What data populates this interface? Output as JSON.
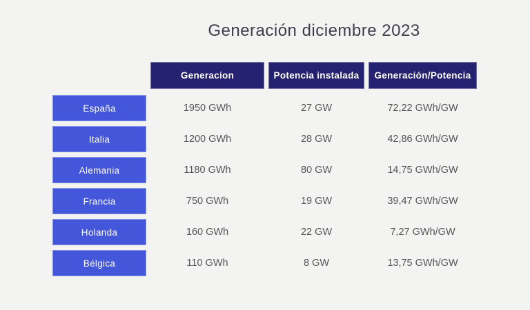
{
  "title": "Generación diciembre 2023",
  "table": {
    "columns": [
      "Generacion",
      "Potencia instalada",
      "Generación/Potencia"
    ],
    "rows": [
      {
        "country": "España",
        "generacion": "1950 GWh",
        "potencia": "27 GW",
        "ratio": "72,22 GWh/GW"
      },
      {
        "country": "Italia",
        "generacion": "1200 GWh",
        "potencia": "28 GW",
        "ratio": "42,86 GWh/GW"
      },
      {
        "country": "Alemania",
        "generacion": "1180 GWh",
        "potencia": "80 GW",
        "ratio": "14,75 GWh/GW"
      },
      {
        "country": "Francia",
        "generacion": "750 GWh",
        "potencia": "19 GW",
        "ratio": "39,47 GWh/GW"
      },
      {
        "country": "Holanda",
        "generacion": "160 GWh",
        "potencia": "22 GW",
        "ratio": "7,27 GWh/GW"
      },
      {
        "country": "Bélgica",
        "generacion": "110 GWh",
        "potencia": "8 GW",
        "ratio": "13,75 GWh/GW"
      }
    ]
  },
  "colors": {
    "background": "#f3f3f1",
    "header_bg": "#252271",
    "label_bg": "#4456d9",
    "header_text": "#ffffff",
    "label_text": "#ffffff",
    "title_text": "#3e3e4c",
    "value_text": "#54555a"
  },
  "chart_data": {
    "type": "table",
    "title": "Generación diciembre 2023",
    "columns": [
      "",
      "Generacion",
      "Potencia instalada",
      "Generación/Potencia"
    ],
    "rows": [
      [
        "España",
        "1950 GWh",
        "27 GW",
        "72,22 GWh/GW"
      ],
      [
        "Italia",
        "1200 GWh",
        "28 GW",
        "42,86 GWh/GW"
      ],
      [
        "Alemania",
        "1180 GWh",
        "80 GW",
        "14,75 GWh/GW"
      ],
      [
        "Francia",
        "750 GWh",
        "19 GW",
        "39,47 GWh/GW"
      ],
      [
        "Holanda",
        "160 GWh",
        "22 GW",
        "7,27 GWh/GW"
      ],
      [
        "Bélgica",
        "110 GWh",
        "8 GW",
        "13,75 GWh/GW"
      ]
    ],
    "categories": [
      "España",
      "Italia",
      "Alemania",
      "Francia",
      "Holanda",
      "Bélgica"
    ],
    "series": [
      {
        "name": "Generacion (GWh)",
        "values": [
          1950,
          1200,
          1180,
          750,
          160,
          110
        ]
      },
      {
        "name": "Potencia instalada (GW)",
        "values": [
          27,
          28,
          80,
          19,
          22,
          8
        ]
      },
      {
        "name": "Generación/Potencia (GWh/GW)",
        "values": [
          72.22,
          42.86,
          14.75,
          39.47,
          7.27,
          13.75
        ]
      }
    ]
  }
}
